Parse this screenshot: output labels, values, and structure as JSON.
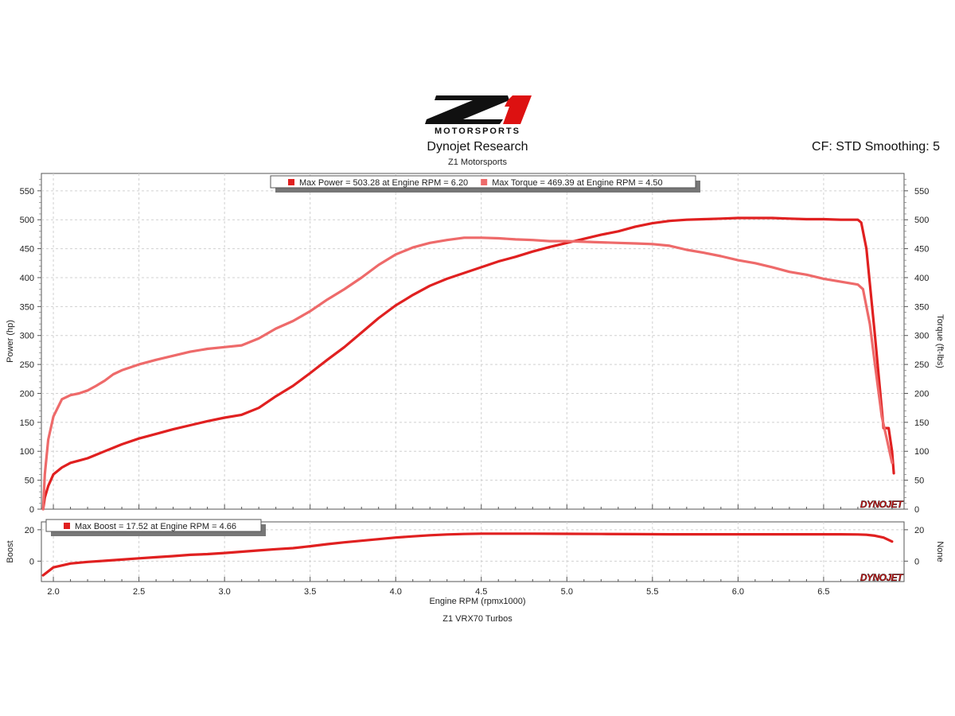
{
  "header": {
    "logo_text": "MOTORSPORTS",
    "title": "Dynojet Research",
    "subtitle": "Z1 Motorsports",
    "cf_info": "CF: STD Smoothing: 5"
  },
  "footer": {
    "label": "Z1 VRX70 Turbos"
  },
  "watermark": "DYNOJET",
  "colors": {
    "power": "#e02020",
    "torque": "#ee6a6a",
    "boost": "#e02020",
    "grid": "#d0d0d0"
  },
  "chart_data": [
    {
      "type": "line",
      "legend": [
        {
          "label": "Max Power = 503.28 at Engine RPM = 6.20",
          "color": "#e02020"
        },
        {
          "label": "Max Torque = 469.39 at Engine RPM = 4.50",
          "color": "#ee6a6a"
        }
      ],
      "ylabel_left": "Power (hp)",
      "ylabel_right": "Torque (ft-lbs)",
      "ylim": [
        0,
        580
      ],
      "yticks": [
        0,
        50,
        100,
        150,
        200,
        250,
        300,
        350,
        400,
        450,
        500,
        550
      ],
      "xlim": [
        1.93,
        6.97
      ],
      "series": [
        {
          "name": "Power",
          "color": "#e02020",
          "x": [
            1.94,
            1.95,
            1.97,
            2.0,
            2.05,
            2.1,
            2.15,
            2.2,
            2.25,
            2.3,
            2.35,
            2.4,
            2.5,
            2.6,
            2.7,
            2.8,
            2.9,
            3.0,
            3.1,
            3.2,
            3.3,
            3.4,
            3.5,
            3.6,
            3.7,
            3.8,
            3.9,
            4.0,
            4.1,
            4.2,
            4.3,
            4.4,
            4.5,
            4.6,
            4.7,
            4.8,
            4.9,
            5.0,
            5.1,
            5.2,
            5.3,
            5.4,
            5.5,
            5.6,
            5.7,
            5.8,
            5.9,
            6.0,
            6.1,
            6.2,
            6.3,
            6.4,
            6.5,
            6.6,
            6.7,
            6.72,
            6.75,
            6.8,
            6.85,
            6.88,
            6.9,
            6.91
          ],
          "values": [
            0,
            20,
            40,
            60,
            72,
            80,
            84,
            88,
            94,
            100,
            106,
            112,
            122,
            130,
            138,
            145,
            152,
            158,
            163,
            175,
            195,
            213,
            235,
            258,
            280,
            305,
            330,
            352,
            370,
            386,
            398,
            408,
            418,
            428,
            436,
            445,
            453,
            460,
            467,
            474,
            480,
            488,
            494,
            498,
            500,
            501,
            502,
            503,
            503,
            503,
            502,
            501,
            501,
            500,
            500,
            495,
            450,
            300,
            140,
            140,
            100,
            62
          ]
        },
        {
          "name": "Torque",
          "color": "#ee6a6a",
          "x": [
            1.94,
            1.95,
            1.97,
            2.0,
            2.05,
            2.1,
            2.15,
            2.2,
            2.25,
            2.3,
            2.35,
            2.4,
            2.5,
            2.6,
            2.7,
            2.8,
            2.9,
            3.0,
            3.1,
            3.2,
            3.3,
            3.4,
            3.5,
            3.6,
            3.7,
            3.8,
            3.9,
            4.0,
            4.1,
            4.2,
            4.3,
            4.4,
            4.5,
            4.6,
            4.7,
            4.8,
            4.9,
            5.0,
            5.1,
            5.2,
            5.3,
            5.4,
            5.5,
            5.6,
            5.7,
            5.8,
            5.9,
            6.0,
            6.1,
            6.2,
            6.3,
            6.4,
            6.5,
            6.6,
            6.7,
            6.73,
            6.77,
            6.8,
            6.84,
            6.87,
            6.9
          ],
          "values": [
            0,
            60,
            120,
            160,
            190,
            197,
            200,
            205,
            213,
            222,
            233,
            240,
            250,
            258,
            265,
            272,
            277,
            280,
            283,
            295,
            312,
            325,
            342,
            362,
            380,
            400,
            422,
            440,
            452,
            460,
            465,
            469,
            469,
            468,
            466,
            465,
            463,
            463,
            462,
            461,
            460,
            459,
            458,
            455,
            448,
            443,
            437,
            430,
            425,
            418,
            410,
            405,
            398,
            393,
            388,
            380,
            320,
            250,
            160,
            120,
            80
          ]
        }
      ],
      "xticks": [
        "2.0",
        "2.5",
        "3.0",
        "3.5",
        "4.0",
        "4.5",
        "5.0",
        "5.5",
        "6.0",
        "6.5"
      ],
      "xtick_values": [
        2.0,
        2.5,
        3.0,
        3.5,
        4.0,
        4.5,
        5.0,
        5.5,
        6.0,
        6.5
      ],
      "grid": true
    },
    {
      "type": "line",
      "legend": [
        {
          "label": "Max Boost = 17.52 at Engine RPM = 4.66",
          "color": "#e02020"
        }
      ],
      "ylabel_left": "Boost",
      "ylabel_right": "None",
      "ylim": [
        -13,
        25
      ],
      "yticks": [
        0,
        20
      ],
      "xlim": [
        1.93,
        6.97
      ],
      "xlabel": "Engine RPM (rpmx1000)",
      "xticks": [
        "2.0",
        "2.5",
        "3.0",
        "3.5",
        "4.0",
        "4.5",
        "5.0",
        "5.5",
        "6.0",
        "6.5"
      ],
      "xtick_values": [
        2.0,
        2.5,
        3.0,
        3.5,
        4.0,
        4.5,
        5.0,
        5.5,
        6.0,
        6.5
      ],
      "series": [
        {
          "name": "Boost",
          "color": "#e02020",
          "x": [
            1.94,
            2.0,
            2.1,
            2.2,
            2.3,
            2.4,
            2.5,
            2.6,
            2.7,
            2.8,
            2.9,
            3.0,
            3.1,
            3.2,
            3.3,
            3.4,
            3.5,
            3.6,
            3.7,
            3.8,
            3.9,
            4.0,
            4.1,
            4.2,
            4.3,
            4.4,
            4.5,
            4.66,
            4.8,
            5.0,
            5.2,
            5.4,
            5.6,
            5.8,
            6.0,
            6.2,
            6.4,
            6.6,
            6.7,
            6.75,
            6.8,
            6.85,
            6.9
          ],
          "values": [
            -9,
            -4,
            -1.5,
            -0.5,
            0.2,
            1,
            1.8,
            2.5,
            3.2,
            4,
            4.5,
            5.2,
            6,
            6.8,
            7.6,
            8.3,
            9.5,
            10.8,
            12,
            13,
            14,
            15,
            15.8,
            16.5,
            17,
            17.3,
            17.5,
            17.52,
            17.5,
            17.4,
            17.3,
            17.2,
            17.1,
            17.1,
            17.1,
            17.1,
            17.1,
            17.1,
            17,
            16.8,
            16.2,
            15,
            12.5
          ]
        }
      ],
      "grid": true
    }
  ]
}
